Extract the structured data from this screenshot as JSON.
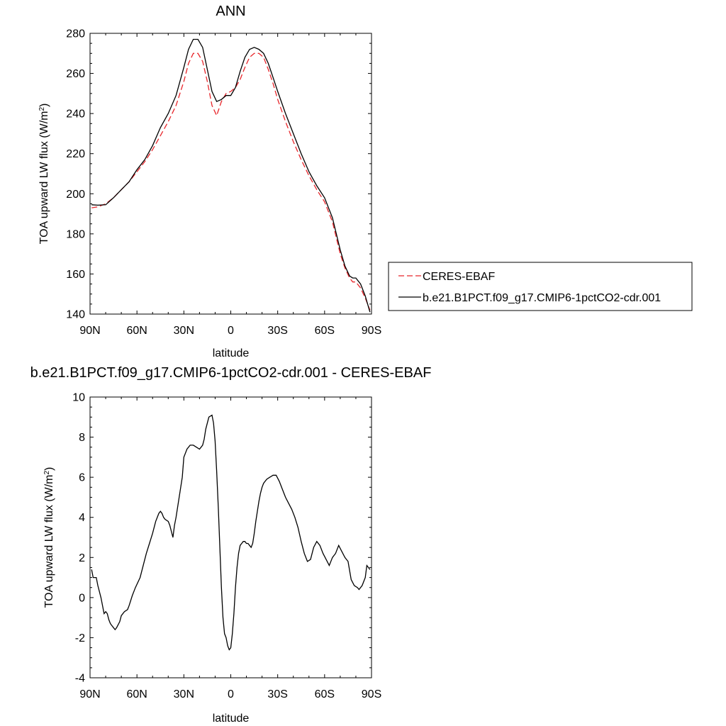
{
  "chart_data": [
    {
      "type": "line",
      "title": "ANN",
      "xlabel": "latitude",
      "ylabel": "TOA upward LW flux (W/m",
      "ylabel_sup": "2",
      "ylabel_tail": ")",
      "xlim": [
        90,
        -90
      ],
      "ylim": [
        140,
        280
      ],
      "x_ticks": [
        90,
        60,
        30,
        0,
        -30,
        -60,
        -90
      ],
      "x_tick_labels": [
        "90N",
        "60N",
        "30N",
        "0",
        "30S",
        "60S",
        "90S"
      ],
      "y_ticks": [
        140,
        160,
        180,
        200,
        220,
        240,
        260,
        280
      ],
      "y_tick_labels": [
        "140",
        "160",
        "180",
        "200",
        "220",
        "240",
        "260",
        "280"
      ],
      "grid": false,
      "legend_position": "right-bottom",
      "series": [
        {
          "name": "CERES-EBAF",
          "color": "#e8262b",
          "dash": true,
          "x": [
            89,
            85,
            80,
            75,
            70,
            65,
            60,
            55,
            50,
            45,
            40,
            35,
            30,
            27,
            24,
            21,
            18,
            15,
            12,
            9,
            6,
            3,
            0,
            -3,
            -6,
            -9,
            -12,
            -15,
            -18,
            -21,
            -24,
            -27,
            -30,
            -35,
            -40,
            -45,
            -50,
            -55,
            -60,
            -65,
            -70,
            -73,
            -76,
            -78,
            -80,
            -83,
            -86,
            -89
          ],
          "y": [
            193,
            193.5,
            195,
            198,
            202,
            206,
            211,
            216,
            222,
            229,
            236,
            244,
            256,
            265,
            270,
            270,
            266,
            256,
            244,
            239,
            246,
            250,
            251,
            253,
            257,
            263,
            268,
            270,
            270,
            268,
            262,
            255,
            247,
            236,
            226,
            217,
            209,
            202,
            196,
            186,
            170,
            163,
            158,
            156,
            156,
            153,
            148,
            142
          ]
        },
        {
          "name": "b.e21.B1PCT.f09_g17.CMIP6-1pctCO2-cdr.001",
          "color": "#000000",
          "dash": false,
          "x": [
            89,
            85,
            80,
            75,
            70,
            65,
            60,
            55,
            50,
            45,
            40,
            35,
            30,
            27,
            24,
            21,
            18,
            15,
            12,
            9,
            6,
            3,
            0,
            -3,
            -6,
            -9,
            -12,
            -15,
            -18,
            -21,
            -24,
            -27,
            -30,
            -35,
            -40,
            -45,
            -50,
            -55,
            -60,
            -65,
            -70,
            -73,
            -76,
            -78,
            -80,
            -83,
            -86,
            -89
          ],
          "y": [
            194.5,
            194.3,
            194.5,
            198,
            202,
            206,
            212,
            217,
            224,
            233,
            240,
            249,
            263,
            272,
            277,
            277,
            273,
            262,
            251,
            246,
            247,
            249,
            249,
            253,
            261,
            268,
            272,
            273,
            272,
            270,
            265,
            258,
            251,
            240,
            230,
            220,
            211,
            204,
            198,
            188,
            172,
            164,
            159,
            158,
            158,
            155,
            149,
            141
          ]
        }
      ]
    },
    {
      "type": "line",
      "title": "b.e21.B1PCT.f09_g17.CMIP6-1pctCO2-cdr.001 - CERES-EBAF",
      "xlabel": "latitude",
      "ylabel": "TOA upward LW flux (W/m",
      "ylabel_sup": "2",
      "ylabel_tail": ")",
      "xlim": [
        90,
        -90
      ],
      "ylim": [
        -4,
        10
      ],
      "x_ticks": [
        90,
        60,
        30,
        0,
        -30,
        -60,
        -90
      ],
      "x_tick_labels": [
        "90N",
        "60N",
        "30N",
        "0",
        "30S",
        "60S",
        "90S"
      ],
      "y_ticks": [
        -4,
        -2,
        0,
        2,
        4,
        6,
        8,
        10
      ],
      "y_tick_labels": [
        "-4",
        "-2",
        "0",
        "2",
        "4",
        "6",
        "8",
        "10"
      ],
      "grid": false,
      "series": [
        {
          "color": "#000000",
          "dash": false,
          "x": [
            89,
            88,
            86,
            85,
            83,
            81,
            80,
            79,
            78,
            77,
            76,
            75,
            74,
            73,
            71,
            70,
            68,
            66,
            65,
            63,
            61,
            58,
            56,
            54,
            52,
            50,
            48,
            46,
            45,
            44,
            43,
            42,
            40,
            39,
            38,
            37,
            36,
            35,
            33,
            31,
            30,
            28,
            26,
            24,
            22,
            20,
            18,
            17,
            16,
            14,
            12,
            11,
            10,
            9,
            8,
            7,
            6,
            5,
            4,
            3,
            2,
            1,
            0,
            -1,
            -2,
            -3,
            -4,
            -5,
            -6,
            -7,
            -8,
            -9,
            -10,
            -11,
            -12,
            -13,
            -14,
            -15,
            -16,
            -17,
            -18,
            -19,
            -20,
            -21,
            -23,
            -25,
            -27,
            -29,
            -31,
            -33,
            -35,
            -37,
            -39,
            -41,
            -43,
            -45,
            -47,
            -49,
            -51,
            -53,
            -55,
            -57,
            -59,
            -61,
            -63,
            -65,
            -67,
            -69,
            -71,
            -73,
            -75,
            -77,
            -79,
            -81,
            -82,
            -84,
            -86,
            -87,
            -88,
            -89
          ],
          "y": [
            1.4,
            1.0,
            1.0,
            0.6,
            0.0,
            -0.8,
            -0.7,
            -0.8,
            -1.1,
            -1.3,
            -1.4,
            -1.5,
            -1.6,
            -1.5,
            -1.2,
            -0.9,
            -0.7,
            -0.6,
            -0.4,
            0.1,
            0.5,
            1.0,
            1.6,
            2.2,
            2.7,
            3.2,
            3.8,
            4.2,
            4.3,
            4.2,
            4.0,
            3.9,
            3.8,
            3.6,
            3.3,
            3.0,
            3.6,
            4.0,
            5.0,
            6.0,
            7.0,
            7.4,
            7.6,
            7.6,
            7.5,
            7.4,
            7.6,
            7.9,
            8.4,
            9.0,
            9.1,
            8.7,
            7.8,
            6.3,
            4.5,
            2.5,
            0.5,
            -1.0,
            -1.8,
            -2.0,
            -2.4,
            -2.6,
            -2.5,
            -1.8,
            -0.8,
            0.5,
            1.5,
            2.2,
            2.6,
            2.7,
            2.8,
            2.8,
            2.7,
            2.7,
            2.6,
            2.5,
            2.7,
            3.2,
            3.8,
            4.3,
            4.8,
            5.2,
            5.5,
            5.7,
            5.9,
            6.0,
            6.1,
            6.1,
            5.8,
            5.4,
            5.0,
            4.7,
            4.4,
            4.0,
            3.5,
            2.8,
            2.2,
            1.8,
            1.9,
            2.5,
            2.8,
            2.6,
            2.2,
            1.9,
            1.6,
            2.0,
            2.2,
            2.6,
            2.3,
            2.0,
            1.8,
            0.9,
            0.6,
            0.5,
            0.4,
            0.6,
            1.0,
            1.6,
            1.5,
            1.4
          ]
        }
      ]
    }
  ]
}
